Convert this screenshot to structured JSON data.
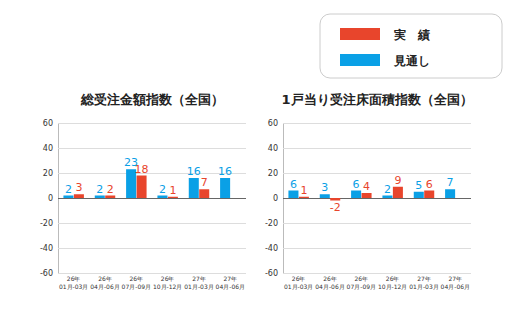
{
  "chart_data": [
    {
      "type": "bar",
      "title": "総受注金額指数（全国）",
      "categories": [
        "26年\n01月-03月",
        "26年\n04月-06月",
        "26年\n07月-09月",
        "26年\n10月-12月",
        "27年\n01月-03月",
        "27年\n04月-06月"
      ],
      "series": [
        {
          "name": "実　績",
          "color": "#e8452c",
          "values": [
            3,
            2,
            18,
            1,
            7,
            null
          ]
        },
        {
          "name": "見通し",
          "color": "#0aa0e6",
          "values": [
            2,
            2,
            23,
            2,
            16,
            16
          ]
        }
      ],
      "ylim": [
        -60,
        60
      ],
      "yticks": [
        -60,
        -40,
        -20,
        0,
        20,
        40,
        60
      ],
      "grid": true,
      "data_labels": true,
      "legend": "top-right"
    },
    {
      "type": "bar",
      "title": "1戸当り受注床面積指数（全国）",
      "categories": [
        "26年\n01月-03月",
        "26年\n04月-06月",
        "26年\n07月-09月",
        "26年\n10月-12月",
        "27年\n01月-03月",
        "27年\n04月-06月"
      ],
      "series": [
        {
          "name": "実　績",
          "color": "#e8452c",
          "values": [
            1,
            -2,
            4,
            9,
            6,
            null
          ]
        },
        {
          "name": "見通し",
          "color": "#0aa0e6",
          "values": [
            6,
            3,
            6,
            2,
            5,
            7
          ]
        }
      ],
      "ylim": [
        -60,
        60
      ],
      "yticks": [
        -60,
        -40,
        -20,
        0,
        20,
        40,
        60
      ],
      "grid": true,
      "data_labels": true
    }
  ]
}
